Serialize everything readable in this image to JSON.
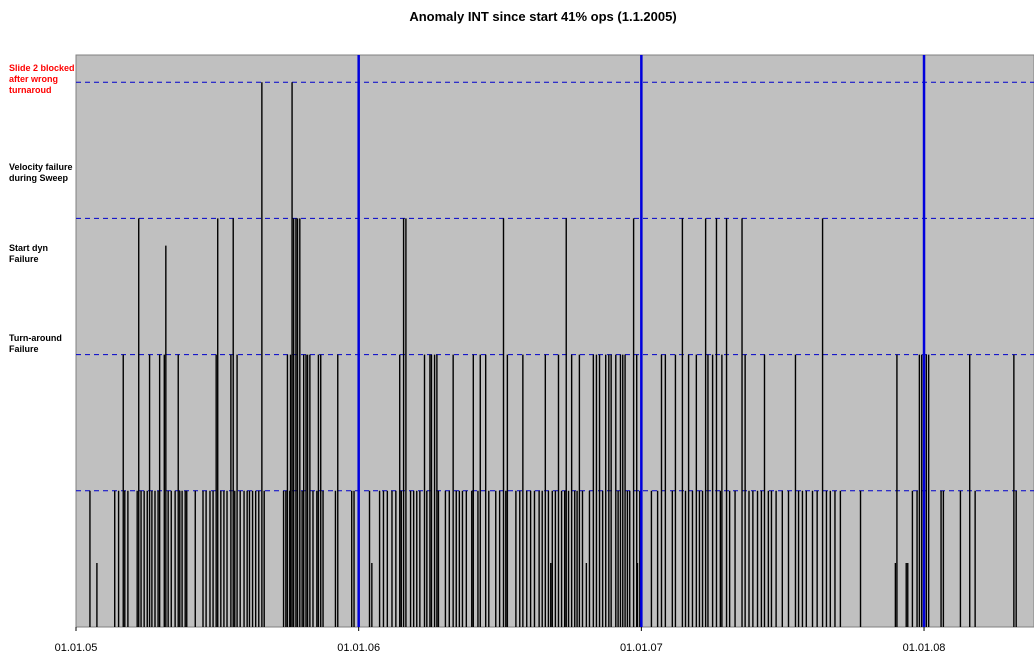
{
  "chart_data": {
    "type": "spike",
    "title": "Anomaly INT since start 41% ops (1.1.2005)",
    "xlim": [
      "01.01.05",
      "22.05.08"
    ],
    "xticks": [
      "01.01.05",
      "01.01.06",
      "01.01.07",
      "01.01.08"
    ],
    "ylim": [
      0,
      4.2
    ],
    "yticks": [
      1,
      2,
      3,
      4
    ],
    "grid": true,
    "grid_color": "#0000cc",
    "year_line_color": "#0000dd",
    "background": "#c0c0c0",
    "color": "#000000",
    "annotations": [
      {
        "lines": [
          "Slide 2 blocked",
          "after wrong",
          "turnaroud"
        ],
        "color": "#ff0000"
      },
      {
        "lines": [
          "Velocity failure",
          "during Sweep"
        ],
        "color": "#000000"
      },
      {
        "lines": [
          "Start dyn",
          "Failure"
        ],
        "color": "#000000"
      },
      {
        "lines": [
          "Turn-around",
          "Failure"
        ],
        "color": "#000000"
      }
    ],
    "x": [
      "19.01.05",
      "28.01.05",
      "20.02.05",
      "25.02.05",
      "03.03.05",
      "05.03.05",
      "09.03.05",
      "21.03.05",
      "23.03.05",
      "26.03.05",
      "30.03.05",
      "03.04.05",
      "06.04.05",
      "09.04.05",
      "13.04.05",
      "17.04.05",
      "19.04.05",
      "25.04.05",
      "27.04.05",
      "30.04.05",
      "04.05.05",
      "09.05.05",
      "13.05.05",
      "15.05.05",
      "18.05.05",
      "22.05.05",
      "24.05.05",
      "04.06.05",
      "14.06.05",
      "18.06.05",
      "23.06.05",
      "27.06.05",
      "01.07.05",
      "03.07.05",
      "07.07.05",
      "11.07.05",
      "15.07.05",
      "20.07.05",
      "23.07.05",
      "25.07.05",
      "28.07.05",
      "01.08.05",
      "06.08.05",
      "10.08.05",
      "13.08.05",
      "17.08.05",
      "21.08.05",
      "25.08.05",
      "29.08.05",
      "01.09.05",
      "26.09.05",
      "29.09.05",
      "01.10.05",
      "04.10.05",
      "05.10.05",
      "07.10.05",
      "09.10.05",
      "12.10.05",
      "14.10.05",
      "17.10.05",
      "20.10.05",
      "22.10.05",
      "25.10.05",
      "27.10.05",
      "30.10.05",
      "03.11.05",
      "08.11.05",
      "10.11.05",
      "13.11.05",
      "16.11.05",
      "02.12.05",
      "05.12.05",
      "23.12.05",
      "26.12.05",
      "15.01.06",
      "18.01.06",
      "28.01.06",
      "02.02.06",
      "07.02.06",
      "13.02.06",
      "18.02.06",
      "23.02.06",
      "25.02.06",
      "28.02.06",
      "03.03.06",
      "09.03.06",
      "13.03.06",
      "17.03.06",
      "21.03.06",
      "27.03.06",
      "30.03.06",
      "03.04.06",
      "05.04.06",
      "09.04.06",
      "12.04.06",
      "14.04.06",
      "23.04.06",
      "28.04.06",
      "03.05.06",
      "07.05.06",
      "11.05.06",
      "15.05.06",
      "20.05.06",
      "27.05.06",
      "29.05.06",
      "04.06.06",
      "07.06.06",
      "14.06.06",
      "18.06.06",
      "27.06.06",
      "02.07.06",
      "07.07.06",
      "10.07.06",
      "12.07.06",
      "23.07.06",
      "28.07.06",
      "01.08.06",
      "06.08.06",
      "11.08.06",
      "16.08.06",
      "22.08.06",
      "26.08.06",
      "30.08.06",
      "03.09.06",
      "06.09.06",
      "08.09.06",
      "12.09.06",
      "16.09.06",
      "20.09.06",
      "24.09.06",
      "26.09.06",
      "29.09.06",
      "03.10.06",
      "07.10.06",
      "10.10.06",
      "13.10.06",
      "17.10.06",
      "22.10.06",
      "26.10.06",
      "31.10.06",
      "04.11.06",
      "08.11.06",
      "12.11.06",
      "16.11.06",
      "20.11.06",
      "23.11.06",
      "29.11.06",
      "02.12.06",
      "05.12.06",
      "08.12.06",
      "11.12.06",
      "14.12.06",
      "17.12.06",
      "22.12.06",
      "26.12.06",
      "27.12.06",
      "30.12.06",
      "14.01.07",
      "22.01.07",
      "27.01.07",
      "01.02.07",
      "10.02.07",
      "14.02.07",
      "23.02.07",
      "27.02.07",
      "03.03.07",
      "08.03.07",
      "13.03.07",
      "17.03.07",
      "21.03.07",
      "25.03.07",
      "28.03.07",
      "03.04.07",
      "08.04.07",
      "13.04.07",
      "15.04.07",
      "21.04.07",
      "25.04.07",
      "02.05.07",
      "11.05.07",
      "15.05.07",
      "20.05.07",
      "25.05.07",
      "31.05.07",
      "05.06.07",
      "09.06.07",
      "14.06.07",
      "18.06.07",
      "24.06.07",
      "02.07.07",
      "10.07.07",
      "19.07.07",
      "23.07.07",
      "28.07.07",
      "02.08.07",
      "10.08.07",
      "16.08.07",
      "23.08.07",
      "28.08.07",
      "02.09.07",
      "08.09.07",
      "15.09.07",
      "11.10.07",
      "25.11.07",
      "27.11.07",
      "09.12.07",
      "11.12.07",
      "17.12.07",
      "23.12.07",
      "26.12.07",
      "29.12.07",
      "04.01.08",
      "07.01.08",
      "23.01.08",
      "26.01.08",
      "17.02.08",
      "29.02.08",
      "07.03.08",
      "26.04.08",
      "29.04.08"
    ],
    "values": [
      1,
      0.47,
      1,
      1,
      2,
      1,
      1,
      1,
      3,
      1,
      1,
      1,
      2,
      1,
      1,
      1,
      2,
      2,
      2.8,
      1,
      1,
      1,
      2,
      1,
      1,
      1,
      1,
      1,
      1,
      1,
      1,
      1,
      2,
      3,
      1,
      1,
      1,
      2,
      3,
      1,
      2,
      1,
      1,
      1,
      1,
      1,
      1,
      1,
      4,
      1,
      1,
      1,
      2,
      1,
      2,
      4,
      3,
      3,
      3,
      3,
      1,
      2,
      2,
      2,
      2,
      1,
      1,
      2,
      2,
      1,
      1,
      2,
      1,
      1,
      1,
      0.47,
      1,
      1,
      1,
      1,
      1,
      2,
      1,
      3,
      3,
      1,
      1,
      1,
      1,
      2,
      1,
      2,
      2,
      2,
      2,
      1,
      1,
      1,
      2,
      1,
      1,
      1,
      1,
      1,
      2,
      1,
      2,
      2,
      1,
      1,
      1,
      3,
      1,
      2,
      1,
      1,
      2,
      1,
      1,
      1,
      1,
      1,
      2,
      1,
      0.47,
      1,
      1,
      2,
      1,
      1,
      3,
      1,
      2,
      1,
      1,
      2,
      1,
      0.47,
      1,
      2,
      2,
      2,
      1,
      2,
      2,
      2,
      2,
      1,
      2,
      2,
      2,
      1,
      1,
      3,
      2,
      0.47,
      1,
      1,
      1,
      2,
      2,
      1,
      2,
      3,
      1,
      2,
      1,
      2,
      1,
      1,
      3,
      2,
      2,
      3,
      1,
      2,
      3,
      1,
      1,
      3,
      2,
      1,
      1,
      1,
      1,
      2,
      1,
      1,
      1,
      1,
      1,
      2,
      1,
      1,
      1,
      1,
      1,
      3,
      1,
      1,
      1,
      1,
      1,
      0.47,
      2,
      0.47,
      0.47,
      1,
      1,
      2,
      2,
      2,
      2,
      1,
      1,
      1,
      2,
      1,
      2,
      1
    ]
  }
}
